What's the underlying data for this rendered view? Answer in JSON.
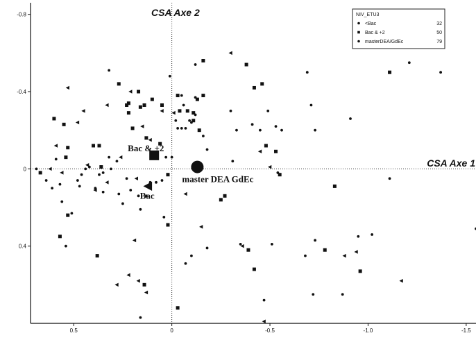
{
  "chart_data": {
    "type": "scatter",
    "title": "",
    "xlabel": "",
    "ylabel": "",
    "x_ticks": [
      {
        "value": 0.5,
        "label": "0.5"
      },
      {
        "value": 0.0,
        "label": "0"
      },
      {
        "value": -0.5,
        "label": "-0.5"
      },
      {
        "value": -1.0,
        "label": "-1.0"
      },
      {
        "value": -1.5,
        "label": "-1.5"
      }
    ],
    "y_ticks": [
      {
        "value": -0.8,
        "label": "-0.8"
      },
      {
        "value": -0.4,
        "label": "-0.4"
      },
      {
        "value": 0.0,
        "label": "0"
      },
      {
        "value": 0.4,
        "label": "0.4"
      }
    ],
    "xlim": [
      0.72,
      -1.55
    ],
    "ylim": [
      -0.86,
      0.8
    ],
    "axis_titles": {
      "axe1": "CSA Axe 1",
      "axe2": "CSA Axe 2"
    },
    "legend": {
      "title": "NIV_ETU3",
      "position": "top-right",
      "entries": [
        {
          "label": "<Bac",
          "count": "32",
          "marker": "triangle"
        },
        {
          "label": "Bac & +2",
          "count": "50",
          "marker": "square"
        },
        {
          "label": "masterDEA/GdEc",
          "count": "79",
          "marker": "circle"
        }
      ]
    },
    "centroids": [
      {
        "label": "Bac & +2",
        "x": 0.09,
        "y": -0.07,
        "marker": "square"
      },
      {
        "label": "Bac",
        "x": 0.12,
        "y": 0.09,
        "marker": "triangle"
      },
      {
        "label": "master DEA GdEc",
        "x": -0.13,
        "y": -0.01,
        "marker": "circle"
      }
    ],
    "series": [
      {
        "name": "<Bac",
        "marker": "triangle",
        "points": [
          [
            0.53,
            -0.42
          ],
          [
            0.45,
            -0.3
          ],
          [
            0.33,
            -0.33
          ],
          [
            0.21,
            -0.4
          ],
          [
            0.15,
            -0.22
          ],
          [
            0.26,
            -0.06
          ],
          [
            0.33,
            0.07
          ],
          [
            0.18,
            0.05
          ],
          [
            0.05,
            -0.3
          ],
          [
            -0.01,
            -0.29
          ],
          [
            0.11,
            -0.15
          ],
          [
            0.39,
            0.11
          ],
          [
            0.56,
            0.02
          ],
          [
            0.62,
            0.0
          ],
          [
            0.43,
            -0.02
          ],
          [
            0.59,
            -0.12
          ],
          [
            0.22,
            0.55
          ],
          [
            0.19,
            0.37
          ],
          [
            0.17,
            0.58
          ],
          [
            -0.07,
            0.13
          ],
          [
            -0.15,
            0.3
          ],
          [
            -0.36,
            0.4
          ],
          [
            -0.45,
            -0.09
          ],
          [
            -0.5,
            -0.01
          ],
          [
            -0.47,
            0.79
          ],
          [
            -0.88,
            0.45
          ],
          [
            -0.94,
            0.43
          ],
          [
            -1.17,
            0.58
          ],
          [
            -0.3,
            -0.6
          ],
          [
            0.28,
            0.6
          ],
          [
            0.48,
            -0.24
          ],
          [
            0.13,
            0.64
          ]
        ]
      },
      {
        "name": "Bac & +2",
        "marker": "square",
        "points": [
          [
            0.67,
            0.02
          ],
          [
            0.6,
            -0.26
          ],
          [
            0.55,
            -0.23
          ],
          [
            0.54,
            -0.06
          ],
          [
            0.53,
            -0.11
          ],
          [
            0.53,
            0.24
          ],
          [
            0.4,
            -0.12
          ],
          [
            0.37,
            -0.12
          ],
          [
            0.36,
            -0.01
          ],
          [
            0.27,
            -0.44
          ],
          [
            0.23,
            -0.33
          ],
          [
            0.22,
            -0.34
          ],
          [
            0.22,
            -0.29
          ],
          [
            0.2,
            -0.21
          ],
          [
            0.17,
            -0.4
          ],
          [
            0.14,
            -0.33
          ],
          [
            0.16,
            -0.32
          ],
          [
            0.1,
            -0.36
          ],
          [
            0.05,
            -0.33
          ],
          [
            0.02,
            0.03
          ],
          [
            -0.03,
            -0.38
          ],
          [
            -0.04,
            -0.3
          ],
          [
            -0.08,
            -0.3
          ],
          [
            -0.13,
            -0.36
          ],
          [
            -0.16,
            -0.38
          ],
          [
            -0.14,
            -0.2
          ],
          [
            -0.25,
            0.16
          ],
          [
            -0.27,
            0.14
          ],
          [
            -0.38,
            -0.54
          ],
          [
            -0.42,
            -0.42
          ],
          [
            -0.46,
            -0.44
          ],
          [
            -0.48,
            -0.12
          ],
          [
            -0.53,
            -0.09
          ],
          [
            -0.39,
            0.42
          ],
          [
            -0.55,
            0.03
          ],
          [
            -0.42,
            0.52
          ],
          [
            -0.83,
            0.09
          ],
          [
            -0.78,
            0.42
          ],
          [
            -0.96,
            0.53
          ],
          [
            -1.11,
            -0.5
          ],
          [
            0.57,
            0.35
          ],
          [
            0.38,
            0.45
          ],
          [
            0.14,
            0.6
          ],
          [
            0.02,
            0.29
          ],
          [
            -0.03,
            0.72
          ],
          [
            -0.11,
            -0.25
          ],
          [
            -0.11,
            -0.29
          ],
          [
            0.06,
            -0.13
          ],
          [
            0.13,
            -0.16
          ],
          [
            -0.16,
            -0.56
          ]
        ]
      },
      {
        "name": "masterDEA/GdEc",
        "marker": "circle",
        "points": [
          [
            0.69,
            0.0
          ],
          [
            0.64,
            0.06
          ],
          [
            0.61,
            0.1
          ],
          [
            0.59,
            -0.05
          ],
          [
            0.57,
            0.08
          ],
          [
            0.56,
            0.17
          ],
          [
            0.53,
            0.24
          ],
          [
            0.51,
            0.23
          ],
          [
            0.47,
            0.09
          ],
          [
            0.48,
            0.06
          ],
          [
            0.46,
            0.03
          ],
          [
            0.44,
            0.0
          ],
          [
            0.42,
            -0.01
          ],
          [
            0.39,
            0.1
          ],
          [
            0.37,
            0.03
          ],
          [
            0.35,
            0.12
          ],
          [
            0.35,
            0.02
          ],
          [
            0.32,
            -0.06
          ],
          [
            0.31,
            0.0
          ],
          [
            0.28,
            -0.04
          ],
          [
            0.27,
            0.13
          ],
          [
            0.25,
            0.18
          ],
          [
            0.23,
            0.05
          ],
          [
            0.21,
            0.11
          ],
          [
            0.17,
            0.14
          ],
          [
            0.13,
            0.14
          ],
          [
            0.08,
            0.07
          ],
          [
            0.05,
            0.06
          ],
          [
            0.03,
            -0.06
          ],
          [
            0.0,
            -0.06
          ],
          [
            -0.03,
            -0.21
          ],
          [
            -0.05,
            -0.21
          ],
          [
            -0.02,
            -0.25
          ],
          [
            -0.06,
            -0.33
          ],
          [
            -0.09,
            -0.25
          ],
          [
            -0.1,
            -0.24
          ],
          [
            -0.12,
            -0.37
          ],
          [
            -0.16,
            -0.17
          ],
          [
            -0.18,
            -0.1
          ],
          [
            -0.3,
            -0.3
          ],
          [
            -0.33,
            -0.2
          ],
          [
            -0.45,
            -0.2
          ],
          [
            -0.49,
            -0.3
          ],
          [
            -0.53,
            -0.22
          ],
          [
            -0.56,
            -0.2
          ],
          [
            -0.54,
            0.02
          ],
          [
            -0.51,
            0.39
          ],
          [
            -0.68,
            0.45
          ],
          [
            -0.69,
            -0.5
          ],
          [
            -0.71,
            -0.33
          ],
          [
            -0.73,
            -0.2
          ],
          [
            -0.73,
            0.37
          ],
          [
            -0.91,
            -0.26
          ],
          [
            -0.95,
            0.35
          ],
          [
            -1.02,
            0.34
          ],
          [
            -1.11,
            0.05
          ],
          [
            -1.21,
            -0.55
          ],
          [
            -1.37,
            -0.5
          ],
          [
            -1.55,
            0.31
          ],
          [
            -0.72,
            0.65
          ],
          [
            -0.87,
            0.65
          ],
          [
            -0.47,
            0.68
          ],
          [
            -0.1,
            0.45
          ],
          [
            -0.07,
            0.49
          ],
          [
            -0.18,
            0.41
          ],
          [
            -0.35,
            0.39
          ],
          [
            0.04,
            0.25
          ],
          [
            -0.05,
            -0.38
          ],
          [
            -0.12,
            -0.54
          ],
          [
            0.32,
            -0.51
          ],
          [
            0.01,
            -0.48
          ],
          [
            0.16,
            0.21
          ],
          [
            0.54,
            0.4
          ],
          [
            0.16,
            0.77
          ],
          [
            -0.07,
            -0.21
          ],
          [
            -0.12,
            -0.28
          ],
          [
            -0.31,
            -0.04
          ],
          [
            0.11,
            0.07
          ],
          [
            -0.41,
            -0.23
          ]
        ]
      }
    ]
  }
}
